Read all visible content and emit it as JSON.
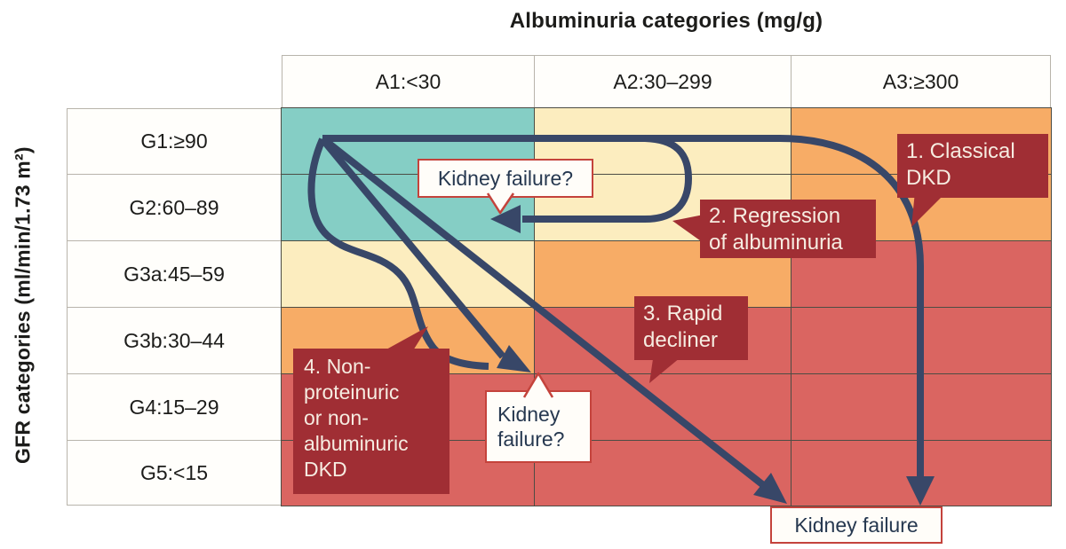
{
  "title": "Albuminuria categories (mg/g)",
  "axis": {
    "gfr_label": "GFR categories (ml/min/1.73 m²)"
  },
  "grid": {
    "columns": [
      {
        "id": "A1",
        "label": "A1:<30"
      },
      {
        "id": "A2",
        "label": "A2:30–299"
      },
      {
        "id": "A3",
        "label": "A3:≥300"
      }
    ],
    "rows": [
      {
        "id": "G1",
        "label": "G1:≥90"
      },
      {
        "id": "G2",
        "label": "G2:60–89"
      },
      {
        "id": "G3a",
        "label": "G3a:45–59"
      },
      {
        "id": "G3b",
        "label": "G3b:30–44"
      },
      {
        "id": "G4",
        "label": "G4:15–29"
      },
      {
        "id": "G5",
        "label": "G5:<15"
      }
    ],
    "matrix": [
      [
        "low",
        "moderate",
        "high"
      ],
      [
        "low",
        "moderate",
        "high"
      ],
      [
        "moderate",
        "high",
        "very_high"
      ],
      [
        "high",
        "very_high",
        "very_high"
      ],
      [
        "very_high",
        "very_high",
        "very_high"
      ],
      [
        "very_high",
        "very_high",
        "very_high"
      ]
    ],
    "risk_colors": {
      "low": "#85cec5",
      "moderate": "#fcedbf",
      "high": "#f7ac66",
      "very_high": "#da6561"
    }
  },
  "callouts": {
    "classical": {
      "text": "1. Classical\nDKD"
    },
    "regression": {
      "text": "2. Regression\nof albuminuria"
    },
    "rapid": {
      "text": "3. Rapid\ndecliner"
    },
    "nonproteinuric": {
      "text": "4. Non-\nproteinuric\nor non-\nalbuminuric\nDKD"
    }
  },
  "white_boxes": {
    "top": {
      "text": "Kidney failure?"
    },
    "mid": {
      "text": "Kidney\nfailure?"
    },
    "bottom": {
      "text": "Kidney failure"
    }
  },
  "style_colors": {
    "arrow": "#384768",
    "callout_bg": "#a02e34",
    "callout_text": "#f6ece1",
    "white_box_border": "#c4433c",
    "white_box_text": "#263850",
    "grid_line": "#4c4c44"
  }
}
